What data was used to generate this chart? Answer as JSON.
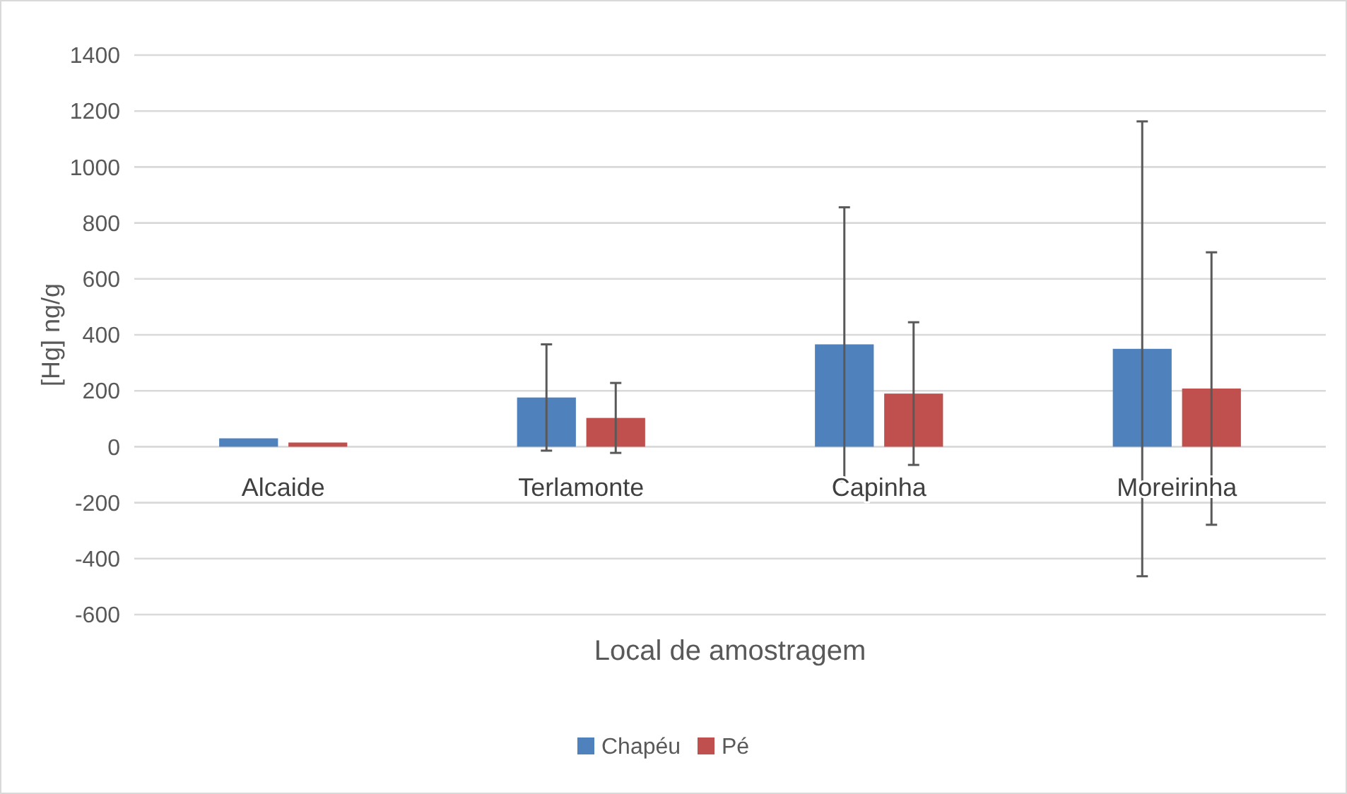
{
  "chart_data": {
    "type": "bar",
    "xlabel": "Local de amostragem",
    "ylabel": "[Hg] ng/g",
    "categories": [
      "Alcaide",
      "Terlamonte",
      "Capinha",
      "Moreirinha"
    ],
    "series": [
      {
        "name": "Chapéu",
        "color": "#4f81bd",
        "values": [
          30,
          176,
          366,
          350
        ],
        "errors": [
          null,
          190,
          490,
          813
        ]
      },
      {
        "name": "Pé",
        "color": "#c0504d",
        "values": [
          15,
          103,
          190,
          208
        ],
        "errors": [
          null,
          125,
          255,
          487
        ]
      }
    ],
    "ylim": [
      -600,
      1400
    ],
    "yticks": [
      -600,
      -400,
      -200,
      0,
      200,
      400,
      600,
      800,
      1000,
      1200,
      1400
    ],
    "grid": "y",
    "legend": "bottom"
  }
}
